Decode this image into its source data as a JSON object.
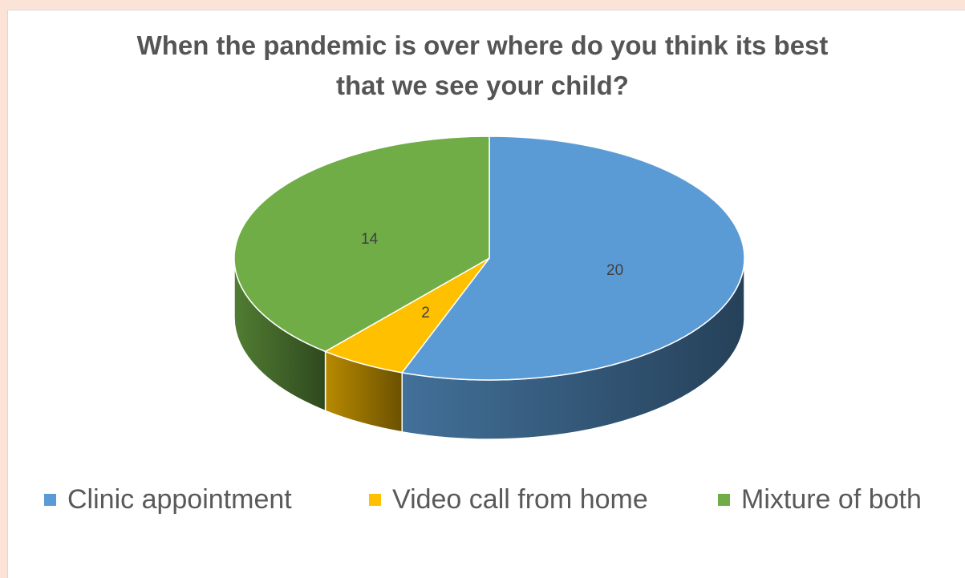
{
  "chart_data": {
    "type": "pie",
    "title_lines": [
      "When the pandemic is over where do you think its best",
      "that we see your child?"
    ],
    "slices": [
      {
        "label": "Clinic appointment",
        "value": 20,
        "color": "#5b9bd5"
      },
      {
        "label": "Video call from home",
        "value": 2,
        "color": "#ffc000"
      },
      {
        "label": "Mixture of both",
        "value": 14,
        "color": "#70ad47"
      }
    ],
    "legend_position": "bottom",
    "style": "3d"
  }
}
